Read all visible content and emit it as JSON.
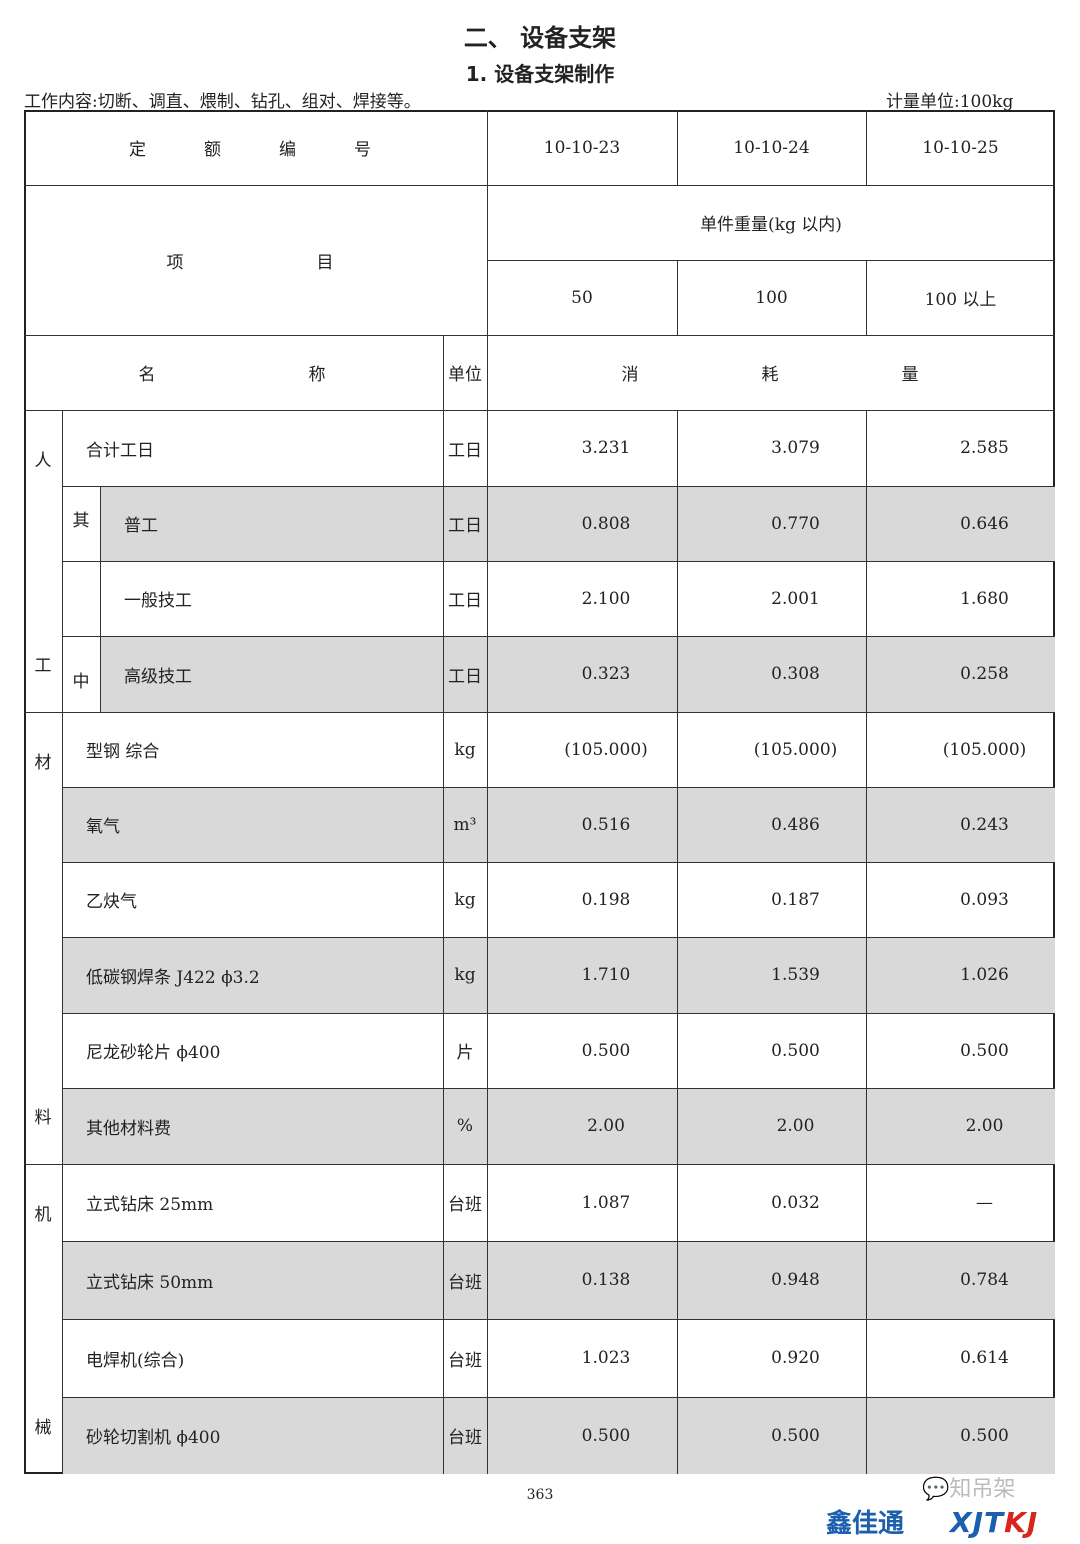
{
  "heading": "二、  设备支架",
  "subheading": "1.  设备支架制作",
  "work_content": "工作内容:切断、调直、煨制、钻孔、组对、焊接等。",
  "unit_note": "计量单位:100kg",
  "header": {
    "quota_label": [
      "定",
      "额",
      "编",
      "号"
    ],
    "codes": [
      "10-10-23",
      "10-10-24",
      "10-10-25"
    ],
    "item_label": [
      "项",
      "目"
    ],
    "weight_label": "单件重量(kg 以内)",
    "weights": [
      "50",
      "100",
      "100 以上"
    ],
    "name_label": [
      "名",
      "称"
    ],
    "unit_label": "单位",
    "consume_label": [
      "消",
      "耗",
      "量"
    ]
  },
  "groups": {
    "labor": [
      "人",
      "工"
    ],
    "among": [
      "其",
      "中"
    ],
    "material": [
      "材",
      "料"
    ],
    "machine": [
      "机",
      "械"
    ]
  },
  "rows": [
    {
      "name": "合计工日",
      "unit": "工日",
      "values": [
        "3.231",
        "3.079",
        "2.585"
      ],
      "gray": false
    },
    {
      "name": "普工",
      "unit": "工日",
      "values": [
        "0.808",
        "0.770",
        "0.646"
      ],
      "gray": true
    },
    {
      "name": "一般技工",
      "unit": "工日",
      "values": [
        "2.100",
        "2.001",
        "1.680"
      ],
      "gray": false
    },
    {
      "name": "高级技工",
      "unit": "工日",
      "values": [
        "0.323",
        "0.308",
        "0.258"
      ],
      "gray": true
    },
    {
      "name": "型钢 综合",
      "unit": "kg",
      "values": [
        "(105.000)",
        "(105.000)",
        "(105.000)"
      ],
      "gray": false
    },
    {
      "name": "氧气",
      "unit": "m³",
      "values": [
        "0.516",
        "0.486",
        "0.243"
      ],
      "gray": true
    },
    {
      "name": "乙炔气",
      "unit": "kg",
      "values": [
        "0.198",
        "0.187",
        "0.093"
      ],
      "gray": false
    },
    {
      "name": "低碳钢焊条 J422 ϕ3.2",
      "unit": "kg",
      "values": [
        "1.710",
        "1.539",
        "1.026"
      ],
      "gray": true
    },
    {
      "name": "尼龙砂轮片 ϕ400",
      "unit": "片",
      "values": [
        "0.500",
        "0.500",
        "0.500"
      ],
      "gray": false
    },
    {
      "name": "其他材料费",
      "unit": "%",
      "values": [
        "2.00",
        "2.00",
        "2.00"
      ],
      "gray": true
    },
    {
      "name": "立式钻床 25mm",
      "unit": "台班",
      "values": [
        "1.087",
        "0.032",
        "—"
      ],
      "gray": false
    },
    {
      "name": "立式钻床 50mm",
      "unit": "台班",
      "values": [
        "0.138",
        "0.948",
        "0.784"
      ],
      "gray": true
    },
    {
      "name": "电焊机(综合)",
      "unit": "台班",
      "values": [
        "1.023",
        "0.920",
        "0.614"
      ],
      "gray": false
    },
    {
      "name": "砂轮切割机 ϕ400",
      "unit": "台班",
      "values": [
        "0.500",
        "0.500",
        "0.500"
      ],
      "gray": true
    }
  ],
  "footer": {
    "page_number": "363",
    "watermark": "知吊架",
    "logo_left": "鑫佳通",
    "logo_right": "XJTKJ",
    "colors": {
      "logo_blue": "#1b5fae",
      "logo_red": "#d9261c",
      "row_gray": "#d9d9d9"
    }
  }
}
